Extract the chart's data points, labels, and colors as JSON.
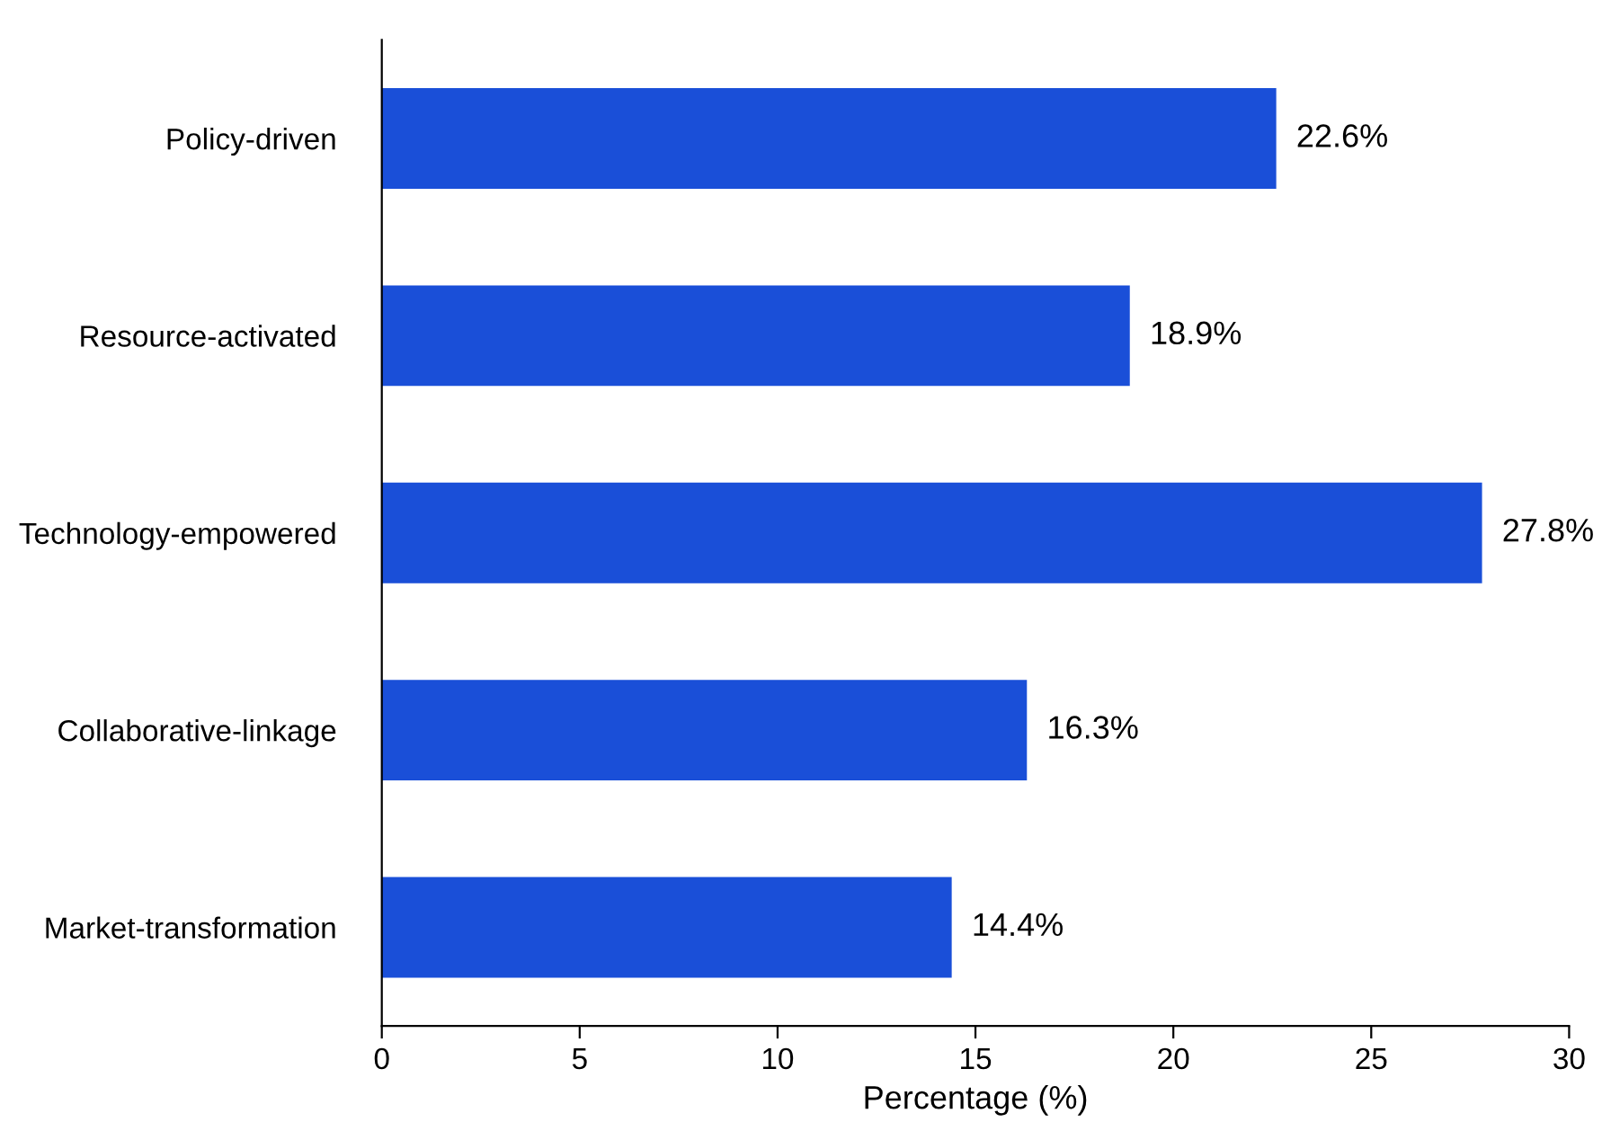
{
  "chart_data": {
    "type": "bar",
    "orientation": "horizontal",
    "xlabel": "Percentage (%)",
    "categories": [
      "Policy-driven",
      "Resource-activated",
      "Technology-empowered",
      "Collaborative-linkage",
      "Market-transformation"
    ],
    "values": [
      22.6,
      18.9,
      27.8,
      16.3,
      14.4
    ],
    "value_labels": [
      "22.6%",
      "18.9%",
      "27.8%",
      "16.3%",
      "14.4%"
    ],
    "color": "#1a4fd8",
    "xlim": [
      0,
      30
    ],
    "xticks": [
      0,
      5,
      10,
      15,
      20,
      25,
      30
    ],
    "grid": false,
    "legend": false
  }
}
